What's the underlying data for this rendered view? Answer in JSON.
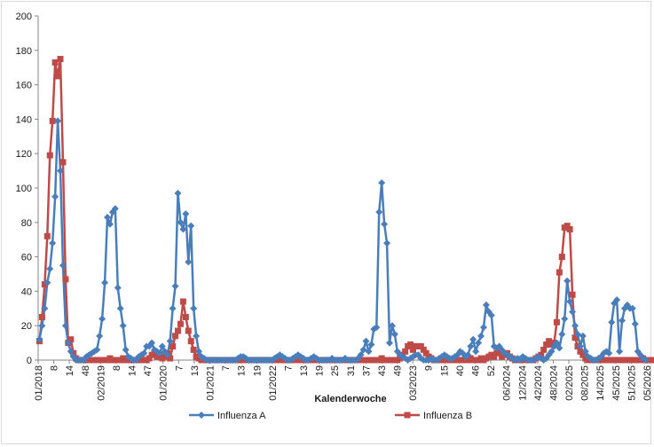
{
  "chart_data": {
    "type": "line",
    "title": "",
    "xlabel": "Kalenderwoche",
    "ylabel": "",
    "ylim": [
      0,
      200
    ],
    "yticks": [
      0,
      20,
      40,
      60,
      80,
      100,
      120,
      140,
      160,
      180,
      200
    ],
    "grid": {
      "horizontal": false,
      "vertical": false
    },
    "legend": {
      "position": "bottom"
    },
    "x_tick_labels": [
      "01/2018",
      "8",
      "14",
      "48",
      "02/2019",
      "8",
      "14",
      "47",
      "01/2020",
      "7",
      "13",
      "01/2021",
      "7",
      "13",
      "19",
      "01/2022",
      "7",
      "13",
      "19",
      "25",
      "31",
      "37",
      "43",
      "49",
      "03/2023",
      "9",
      "15",
      "40",
      "46",
      "52",
      "06/2024",
      "12/2024",
      "42/2024",
      "48/2024",
      "02/2025",
      "08/2025",
      "14/2025",
      "45/2025",
      "51/2025",
      "05/2026"
    ],
    "series": [
      {
        "name": "Influenza A",
        "color": "#4a7ebb",
        "marker": "diamond",
        "values": [
          12,
          20,
          30,
          45,
          53,
          68,
          95,
          139,
          110,
          55,
          20,
          10,
          5,
          2,
          0,
          0,
          0,
          0,
          2,
          3,
          4,
          5,
          6,
          14,
          24,
          45,
          83,
          79,
          86,
          88,
          42,
          30,
          20,
          6,
          2,
          1,
          0,
          0,
          2,
          3,
          4,
          8,
          8,
          10,
          6,
          5,
          4,
          8,
          5,
          3,
          11,
          30,
          43,
          97,
          80,
          76,
          85,
          57,
          78,
          30,
          14,
          5,
          2,
          1,
          0,
          0,
          0,
          0,
          0,
          0,
          0,
          0,
          0,
          0,
          0,
          0,
          1,
          2,
          2,
          1,
          0,
          0,
          0,
          0,
          0,
          0,
          0,
          0,
          0,
          0,
          1,
          2,
          3,
          2,
          1,
          0,
          0,
          1,
          2,
          3,
          2,
          1,
          0,
          0,
          1,
          2,
          1,
          0,
          0,
          0,
          0,
          0,
          1,
          0,
          0,
          0,
          0,
          1,
          0,
          0,
          0,
          0,
          1,
          3,
          6,
          11,
          5,
          9,
          18,
          19,
          86,
          103,
          79,
          68,
          10,
          20,
          15,
          5,
          3,
          2,
          1,
          0,
          1,
          2,
          3,
          3,
          1,
          0,
          0,
          0,
          1,
          0,
          0,
          1,
          2,
          3,
          2,
          1,
          1,
          2,
          3,
          5,
          4,
          2,
          3,
          8,
          12,
          5,
          10,
          14,
          19,
          32,
          28,
          26,
          8,
          7,
          8,
          6,
          4,
          3,
          2,
          1,
          0,
          1,
          0,
          2,
          1,
          0,
          0,
          0,
          1,
          2,
          1,
          0,
          1,
          3,
          5,
          8,
          10,
          7,
          15,
          24,
          46,
          34,
          28,
          20,
          15,
          8,
          14,
          5,
          2,
          1,
          0,
          0,
          1,
          2,
          4,
          5,
          4,
          22,
          33,
          35,
          5,
          23,
          30,
          32,
          30,
          30,
          21,
          5,
          3,
          1,
          0
        ]
      },
      {
        "name": "Influenza B",
        "color": "#be4b48",
        "marker": "square",
        "values": [
          11,
          25,
          44,
          72,
          119,
          139,
          173,
          165,
          175,
          115,
          47,
          10,
          12,
          4,
          1,
          0,
          0,
          0,
          0,
          0,
          0,
          0,
          0,
          0,
          0,
          0,
          0,
          1,
          0,
          0,
          0,
          0,
          1,
          0,
          0,
          0,
          0,
          0,
          0,
          1,
          0,
          0,
          1,
          3,
          4,
          2,
          3,
          1,
          2,
          4,
          1,
          8,
          14,
          17,
          21,
          34,
          25,
          17,
          11,
          6,
          2,
          1,
          0,
          0,
          0,
          0,
          0,
          0,
          0,
          0,
          0,
          0,
          0,
          0,
          0,
          0,
          0,
          0,
          0,
          0,
          0,
          0,
          0,
          0,
          0,
          0,
          0,
          0,
          0,
          0,
          0,
          0,
          0,
          0,
          0,
          0,
          0,
          0,
          0,
          0,
          0,
          0,
          0,
          0,
          0,
          0,
          0,
          0,
          0,
          0,
          0,
          0,
          0,
          0,
          0,
          0,
          0,
          0,
          0,
          0,
          0,
          0,
          0,
          0,
          0,
          0,
          0,
          0,
          0,
          0,
          0,
          1,
          0,
          0,
          0,
          0,
          0,
          0,
          1,
          3,
          5,
          8,
          9,
          6,
          8,
          8,
          8,
          6,
          4,
          2,
          1,
          0,
          0,
          0,
          0,
          0,
          0,
          0,
          0,
          0,
          0,
          0,
          0,
          0,
          0,
          1,
          0,
          0,
          0,
          1,
          0,
          1,
          2,
          3,
          2,
          4,
          5,
          2,
          3,
          4,
          2,
          1,
          0,
          0,
          0,
          1,
          0,
          0,
          0,
          0,
          1,
          2,
          3,
          6,
          9,
          11,
          9,
          10,
          22,
          51,
          60,
          77,
          78,
          76,
          38,
          13,
          8,
          5,
          3,
          1,
          0,
          0,
          0,
          0,
          0,
          0,
          0,
          0,
          0,
          0,
          0,
          0,
          0,
          0,
          0,
          0,
          0,
          0,
          0,
          0,
          0,
          1,
          0,
          0,
          0,
          0
        ]
      }
    ]
  }
}
